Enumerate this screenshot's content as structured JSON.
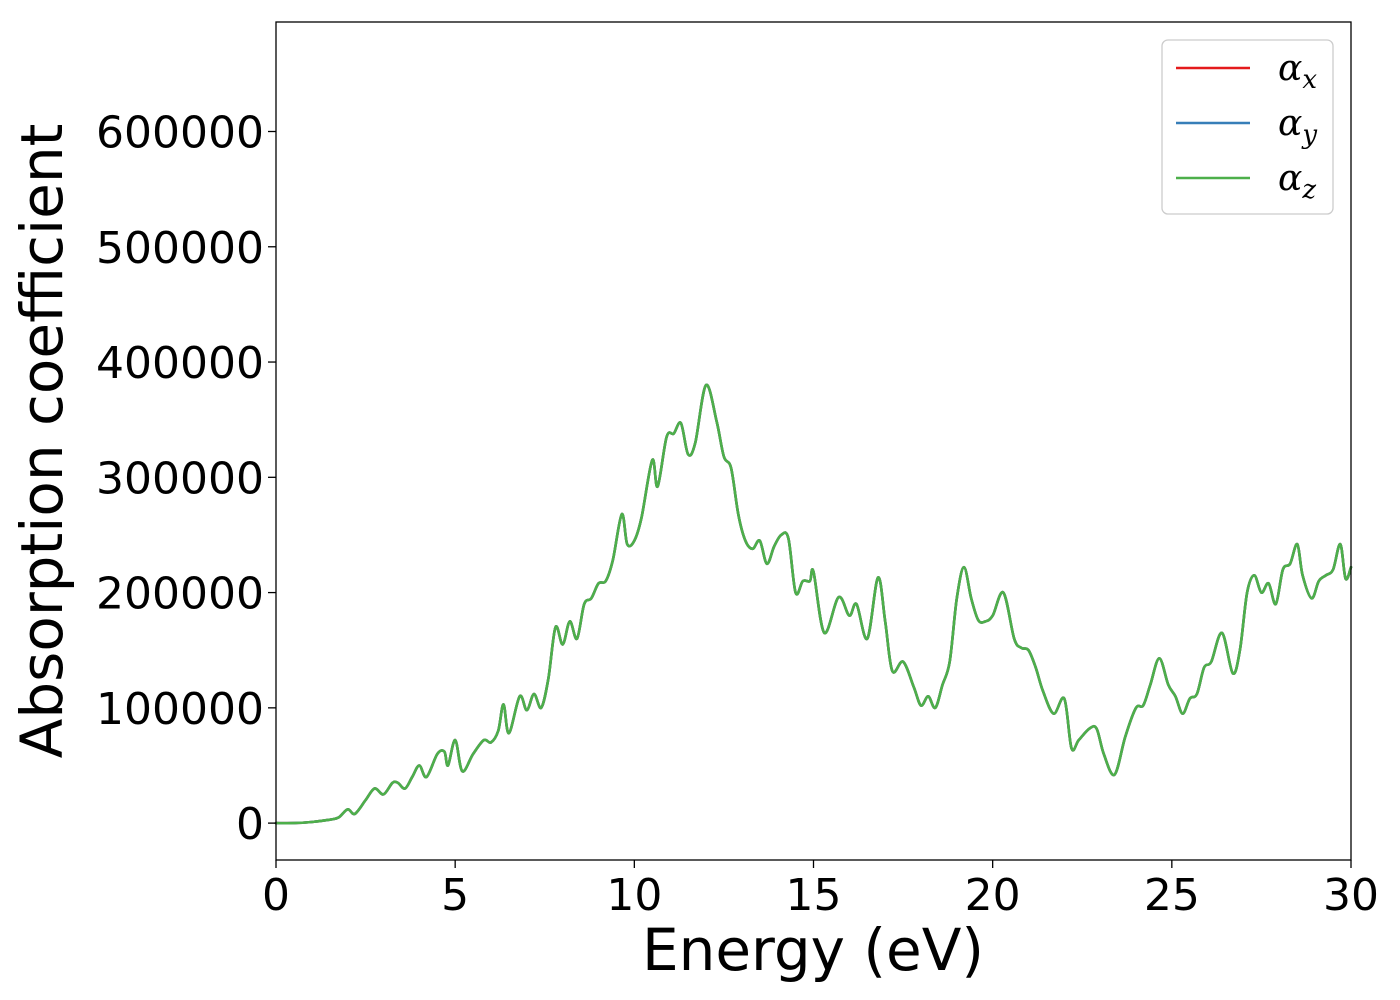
{
  "chart_data": {
    "type": "line",
    "title": "",
    "xlabel": "Energy (eV)",
    "ylabel": "Absorption coefficient",
    "xlim": [
      0,
      30
    ],
    "ylim": [
      -32000,
      695000
    ],
    "xticks": [
      0,
      5,
      10,
      15,
      20,
      25,
      30
    ],
    "yticks": [
      0,
      100000,
      200000,
      300000,
      400000,
      500000,
      600000
    ],
    "grid": false,
    "legend_position": "top-right",
    "x": [
      0,
      0.5,
      1.0,
      1.5,
      1.75,
      2.0,
      2.2,
      2.5,
      2.75,
      3.0,
      3.25,
      3.4,
      3.6,
      3.8,
      4.0,
      4.2,
      4.5,
      4.7,
      4.8,
      5.0,
      5.2,
      5.5,
      5.8,
      6.0,
      6.2,
      6.35,
      6.5,
      6.8,
      7.0,
      7.2,
      7.4,
      7.6,
      7.8,
      8.0,
      8.2,
      8.4,
      8.6,
      8.8,
      9.0,
      9.2,
      9.4,
      9.65,
      9.8,
      10.0,
      10.2,
      10.5,
      10.65,
      10.9,
      11.1,
      11.3,
      11.5,
      11.7,
      12.0,
      12.3,
      12.5,
      12.7,
      12.9,
      13.1,
      13.3,
      13.5,
      13.7,
      13.9,
      14.1,
      14.3,
      14.5,
      14.7,
      14.9,
      15.0,
      15.3,
      15.7,
      16.0,
      16.2,
      16.5,
      16.8,
      17.0,
      17.2,
      17.5,
      17.8,
      18.0,
      18.2,
      18.4,
      18.6,
      18.8,
      19.0,
      19.2,
      19.4,
      19.6,
      19.8,
      20.0,
      20.3,
      20.6,
      20.8,
      21.0,
      21.2,
      21.4,
      21.7,
      22.0,
      22.2,
      22.4,
      22.7,
      22.9,
      23.1,
      23.4,
      23.7,
      24.0,
      24.2,
      24.4,
      24.65,
      24.9,
      25.1,
      25.3,
      25.5,
      25.7,
      25.9,
      26.1,
      26.4,
      26.7,
      26.9,
      27.1,
      27.3,
      27.5,
      27.7,
      27.9,
      28.1,
      28.3,
      28.5,
      28.65,
      28.9,
      29.1,
      29.3,
      29.5,
      29.7,
      29.85,
      30.0
    ],
    "series": [
      {
        "name": "αx",
        "sub": "x",
        "color": "#e41a1c",
        "y": [
          0,
          0,
          1000,
          3000,
          5000,
          12000,
          8000,
          20000,
          30000,
          25000,
          35000,
          35000,
          30000,
          40000,
          50000,
          40000,
          60000,
          62000,
          50000,
          72000,
          45000,
          60000,
          72000,
          70000,
          80000,
          103000,
          78000,
          110000,
          98000,
          112000,
          100000,
          125000,
          170000,
          155000,
          175000,
          160000,
          190000,
          195000,
          208000,
          210000,
          228000,
          268000,
          242000,
          245000,
          265000,
          315000,
          292000,
          335000,
          338000,
          347000,
          320000,
          330000,
          380000,
          348000,
          318000,
          308000,
          268000,
          245000,
          238000,
          245000,
          225000,
          240000,
          250000,
          247000,
          200000,
          210000,
          210000,
          218000,
          165000,
          196000,
          180000,
          190000,
          160000,
          213000,
          175000,
          132000,
          140000,
          118000,
          102000,
          110000,
          100000,
          120000,
          140000,
          195000,
          222000,
          195000,
          176000,
          175000,
          180000,
          200000,
          160000,
          152000,
          150000,
          135000,
          115000,
          95000,
          108000,
          65000,
          72000,
          82000,
          82000,
          60000,
          42000,
          75000,
          100000,
          102000,
          120000,
          143000,
          120000,
          110000,
          95000,
          108000,
          112000,
          135000,
          140000,
          165000,
          130000,
          150000,
          200000,
          215000,
          200000,
          208000,
          190000,
          220000,
          225000,
          242000,
          215000,
          195000,
          210000,
          215000,
          220000,
          242000,
          212000,
          222000
        ]
      },
      {
        "name": "αy",
        "sub": "y",
        "color": "#377eb8",
        "y": [
          0,
          0,
          1000,
          3000,
          5000,
          12000,
          8000,
          20000,
          30000,
          25000,
          35000,
          35000,
          30000,
          40000,
          50000,
          40000,
          60000,
          62000,
          50000,
          72000,
          45000,
          60000,
          72000,
          70000,
          80000,
          103000,
          78000,
          110000,
          98000,
          112000,
          100000,
          125000,
          170000,
          155000,
          175000,
          160000,
          190000,
          195000,
          208000,
          210000,
          228000,
          268000,
          242000,
          245000,
          265000,
          315000,
          292000,
          335000,
          338000,
          347000,
          320000,
          330000,
          380000,
          348000,
          318000,
          308000,
          268000,
          245000,
          238000,
          245000,
          225000,
          240000,
          250000,
          247000,
          200000,
          210000,
          210000,
          218000,
          165000,
          196000,
          180000,
          190000,
          160000,
          213000,
          175000,
          132000,
          140000,
          118000,
          102000,
          110000,
          100000,
          120000,
          140000,
          195000,
          222000,
          195000,
          176000,
          175000,
          180000,
          200000,
          160000,
          152000,
          150000,
          135000,
          115000,
          95000,
          108000,
          65000,
          72000,
          82000,
          82000,
          60000,
          42000,
          75000,
          100000,
          102000,
          120000,
          143000,
          120000,
          110000,
          95000,
          108000,
          112000,
          135000,
          140000,
          165000,
          130000,
          150000,
          200000,
          215000,
          200000,
          208000,
          190000,
          220000,
          225000,
          242000,
          215000,
          195000,
          210000,
          215000,
          220000,
          242000,
          212000,
          222000
        ]
      },
      {
        "name": "αz",
        "sub": "z",
        "color": "#4daf4a",
        "y": [
          0,
          0,
          1000,
          3000,
          5000,
          12000,
          8000,
          20000,
          30000,
          25000,
          35000,
          35000,
          30000,
          40000,
          50000,
          40000,
          60000,
          62000,
          50000,
          72000,
          45000,
          60000,
          72000,
          70000,
          80000,
          103000,
          78000,
          110000,
          98000,
          112000,
          100000,
          125000,
          170000,
          155000,
          175000,
          160000,
          190000,
          195000,
          208000,
          210000,
          228000,
          268000,
          242000,
          245000,
          265000,
          315000,
          292000,
          335000,
          338000,
          347000,
          320000,
          330000,
          380000,
          348000,
          318000,
          308000,
          268000,
          245000,
          238000,
          245000,
          225000,
          240000,
          250000,
          247000,
          200000,
          210000,
          210000,
          218000,
          165000,
          196000,
          180000,
          190000,
          160000,
          213000,
          175000,
          132000,
          140000,
          118000,
          102000,
          110000,
          100000,
          120000,
          140000,
          195000,
          222000,
          195000,
          176000,
          175000,
          180000,
          200000,
          160000,
          152000,
          150000,
          135000,
          115000,
          95000,
          108000,
          65000,
          72000,
          82000,
          82000,
          60000,
          42000,
          75000,
          100000,
          102000,
          120000,
          143000,
          120000,
          110000,
          95000,
          108000,
          112000,
          135000,
          140000,
          165000,
          130000,
          150000,
          200000,
          215000,
          200000,
          208000,
          190000,
          220000,
          225000,
          242000,
          215000,
          195000,
          210000,
          215000,
          220000,
          242000,
          212000,
          222000
        ]
      }
    ]
  }
}
